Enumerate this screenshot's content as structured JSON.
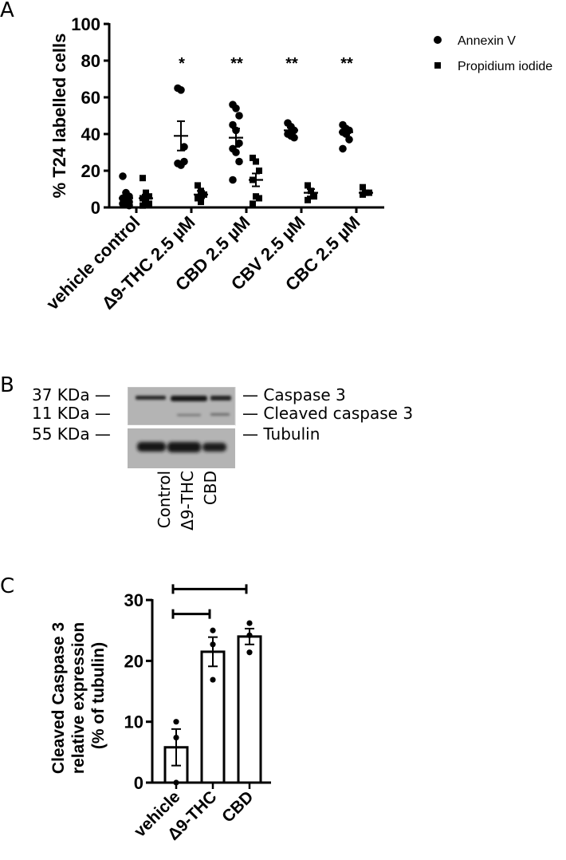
{
  "panels": {
    "a": {
      "letter": "A"
    },
    "b": {
      "letter": "B"
    },
    "c": {
      "letter": "C"
    }
  },
  "chart_data": [
    {
      "panel": "A",
      "type": "scatter",
      "ylabel": "% T24 labelled cells",
      "xlabel": "",
      "ylim": [
        0,
        100
      ],
      "yticks": [
        0,
        20,
        40,
        60,
        80,
        100
      ],
      "categories": [
        "vehicle control",
        "Δ9-THC 2.5 µM",
        "CBD 2.5 µM",
        "CBV 2.5 µM",
        "CBC 2.5 µM"
      ],
      "legend": {
        "position": "upper right",
        "entries": [
          "Annexin V",
          "Propidium iodide"
        ]
      },
      "significance": [
        "",
        "*",
        "**",
        "**",
        "**"
      ],
      "series": [
        {
          "name": "Annexin V",
          "marker": "circle",
          "mean": [
            5,
            39,
            38,
            42,
            41
          ],
          "sem": [
            1.5,
            8,
            5,
            1.5,
            1.5
          ],
          "points": [
            [
              17,
              8,
              6,
              5,
              4,
              3,
              2,
              2,
              1
            ],
            [
              65,
              64,
              33,
              24,
              23,
              25
            ],
            [
              56,
              54,
              50,
              45,
              42,
              35,
              32,
              30,
              25,
              15
            ],
            [
              46,
              44,
              42,
              40,
              39,
              38
            ],
            [
              45,
              43,
              42,
              41,
              40,
              37,
              32
            ]
          ]
        },
        {
          "name": "Propidium iodide",
          "marker": "square",
          "mean": [
            5,
            7,
            15,
            8,
            8
          ],
          "sem": [
            2,
            2,
            3.5,
            2,
            1
          ],
          "points": [
            [
              16,
              8,
              6,
              5,
              3,
              2,
              1
            ],
            [
              12,
              9,
              7,
              5,
              3
            ],
            [
              27,
              25,
              20,
              15,
              6,
              5,
              2
            ],
            [
              12,
              9,
              6,
              4
            ],
            [
              11,
              8,
              8,
              7
            ]
          ]
        }
      ]
    },
    {
      "panel": "C",
      "type": "bar",
      "ylabel": "Cleaved Caspase 3 relative expression (% of tubulin)",
      "ylabel_lines": [
        "Cleaved Caspase 3",
        "relative expression",
        "(% of tubulin)"
      ],
      "xlabel": "",
      "ylim": [
        0,
        30
      ],
      "yticks": [
        0,
        10,
        20,
        30
      ],
      "categories": [
        "vehicle",
        "Δ9-THC",
        "CBD"
      ],
      "values": [
        5.8,
        21.5,
        24.0
      ],
      "sem": [
        3.0,
        2.4,
        1.3
      ],
      "points": [
        [
          10,
          7.4,
          0
        ],
        [
          25,
          22.7,
          16.9
        ],
        [
          26.2,
          24.2,
          21.4
        ]
      ],
      "comparison_brackets": [
        {
          "from": "vehicle",
          "to": "Δ9-THC",
          "y": 27.7
        },
        {
          "from": "vehicle",
          "to": "CBD",
          "y": 31.8
        }
      ]
    }
  ],
  "chartA": {
    "ylabel": "% T24 labelled cells",
    "yticks": [
      "0",
      "20",
      "40",
      "60",
      "80",
      "100"
    ],
    "categories": [
      "vehicle control",
      "Δ9-THC 2.5 µM",
      "CBD 2.5 µM",
      "CBV 2.5 µM",
      "CBC 2.5 µM"
    ],
    "stars": [
      "*",
      "**",
      "**",
      "**"
    ],
    "legend": [
      "Annexin V",
      "Propidium iodide"
    ]
  },
  "blot": {
    "left_labels": [
      "37 KDa —",
      "11 KDa —",
      "55 KDa —"
    ],
    "right_labels": [
      "— Caspase 3",
      "— Cleaved caspase 3",
      "— Tubulin"
    ],
    "lanes": [
      "Control",
      "Δ9-THC",
      "CBD"
    ]
  },
  "chartC": {
    "ylabel_lines": [
      "Cleaved Caspase 3",
      "relative expression",
      "(% of tubulin)"
    ],
    "yticks": [
      "0",
      "10",
      "20",
      "30"
    ],
    "categories": [
      "vehicle",
      "Δ9-THC",
      "CBD"
    ]
  }
}
